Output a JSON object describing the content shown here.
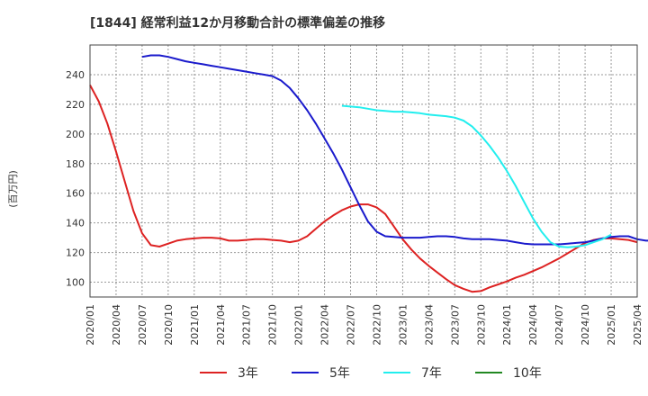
{
  "chart_data": {
    "type": "line",
    "title": "[1844]  経常利益12か月移動合計の標準偏差の推移",
    "ylabel": "(百万円)",
    "xlabel": "",
    "ylim": [
      90,
      260
    ],
    "yticks": [
      100,
      120,
      140,
      160,
      180,
      200,
      220,
      240
    ],
    "x_ticks": [
      "2020/01",
      "2020/04",
      "2020/07",
      "2020/10",
      "2021/01",
      "2021/04",
      "2021/07",
      "2021/10",
      "2022/01",
      "2022/04",
      "2022/07",
      "2022/10",
      "2023/01",
      "2023/04",
      "2023/07",
      "2023/10",
      "2024/01",
      "2024/04",
      "2024/07",
      "2024/10",
      "2025/01",
      "2025/04"
    ],
    "grid": true,
    "series": [
      {
        "name": "3年",
        "color": "#dd2222",
        "start": "2020/01",
        "values": [
          233,
          222,
          207,
          188,
          168,
          148,
          133,
          125,
          124,
          126,
          128,
          129,
          129.5,
          130,
          130,
          129.5,
          128,
          128,
          128.5,
          129,
          129,
          128.5,
          128,
          127,
          128,
          131,
          136,
          141,
          145,
          148.5,
          151,
          152.5,
          152.5,
          150.5,
          146,
          137.5,
          129,
          122,
          116,
          111,
          106.5,
          102,
          98,
          95.5,
          93.5,
          94,
          96.5,
          98.5,
          100.5,
          103,
          105,
          107.5,
          110,
          113,
          116,
          119.5,
          123,
          126.5,
          128.5,
          129.5,
          129.5,
          129,
          128.5,
          127
        ]
      },
      {
        "name": "5年",
        "color": "#1a1acc",
        "start": "2020/07",
        "values": [
          252,
          253,
          253,
          252,
          250.5,
          249,
          248,
          247,
          246,
          245,
          244,
          243,
          242,
          241,
          240,
          239,
          236,
          231,
          224,
          216,
          207,
          197,
          187,
          176,
          164,
          152,
          141,
          134,
          131,
          130.5,
          130,
          130,
          130,
          130.5,
          131,
          131,
          130.5,
          129.5,
          129,
          129,
          129,
          128.5,
          128,
          127,
          126,
          125.5,
          125.5,
          125.5,
          125.5,
          126,
          126.5,
          127,
          128,
          129.5,
          130.5,
          131,
          131,
          129,
          128,
          128,
          130
        ]
      },
      {
        "name": "7年",
        "color": "#22eeee",
        "start": "2022/06",
        "values": [
          219,
          218.5,
          218,
          217,
          216,
          215.5,
          215,
          215,
          214.5,
          214,
          213,
          212.5,
          212,
          211,
          209,
          205,
          199,
          192,
          184,
          175,
          165,
          154,
          143,
          134,
          127,
          124,
          123.5,
          124,
          125,
          127,
          129,
          132
        ]
      },
      {
        "name": "10年",
        "color": "#228822",
        "start": "2020/01",
        "values": []
      }
    ]
  }
}
